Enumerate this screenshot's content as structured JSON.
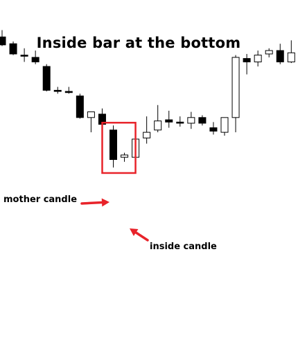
{
  "title": "Inside bar at the bottom",
  "annotations": {
    "mother": "mother candle",
    "inside": "inside candle"
  },
  "colors": {
    "bearish": "#000000",
    "bullish": "#ffffff",
    "outline": "#000000",
    "highlight": "#e8232a",
    "arrow": "#e8232a"
  },
  "chart_data": {
    "type": "candlestick",
    "title": "Inside bar at the bottom",
    "xlabel": "",
    "ylabel": "",
    "grid": false,
    "axes_visible": false,
    "ylim": [
      0,
      100
    ],
    "candles": [
      {
        "open": 88.0,
        "high": 91.0,
        "low": 84.0,
        "close": 84.5
      },
      {
        "open": 85.0,
        "high": 86.0,
        "low": 80.0,
        "close": 80.5
      },
      {
        "open": 80.0,
        "high": 83.0,
        "low": 77.0,
        "close": 79.5
      },
      {
        "open": 79.0,
        "high": 82.0,
        "low": 76.0,
        "close": 77.0
      },
      {
        "open": 75.0,
        "high": 76.0,
        "low": 64.0,
        "close": 64.5
      },
      {
        "open": 64.5,
        "high": 66.0,
        "low": 63.0,
        "close": 64.0
      },
      {
        "open": 64.0,
        "high": 66.0,
        "low": 63.0,
        "close": 63.5
      },
      {
        "open": 62.0,
        "high": 63.0,
        "low": 52.0,
        "close": 52.5
      },
      {
        "open": 52.5,
        "high": 55.0,
        "low": 46.0,
        "close": 55.0
      },
      {
        "open": 54.0,
        "high": 56.5,
        "low": 49.0,
        "close": 49.5
      },
      {
        "open": 47.0,
        "high": 49.0,
        "low": 30.5,
        "close": 34.0
      },
      {
        "open": 35.0,
        "high": 37.0,
        "low": 33.0,
        "close": 36.0
      },
      {
        "open": 35.0,
        "high": 44.5,
        "low": 32.5,
        "close": 43.0
      },
      {
        "open": 43.5,
        "high": 53.0,
        "low": 41.0,
        "close": 46.0
      },
      {
        "open": 47.0,
        "high": 58.0,
        "low": 46.0,
        "close": 51.0
      },
      {
        "open": 51.5,
        "high": 55.5,
        "low": 48.0,
        "close": 50.5
      },
      {
        "open": 50.5,
        "high": 53.0,
        "low": 48.5,
        "close": 50.0
      },
      {
        "open": 50.0,
        "high": 55.0,
        "low": 47.5,
        "close": 52.5
      },
      {
        "open": 52.5,
        "high": 53.5,
        "low": 49.0,
        "close": 50.0
      },
      {
        "open": 48.0,
        "high": 50.5,
        "low": 45.0,
        "close": 46.5
      },
      {
        "open": 46.0,
        "high": 52.0,
        "low": 44.5,
        "close": 52.5
      },
      {
        "open": 52.5,
        "high": 80.0,
        "low": 46.0,
        "close": 79.0
      },
      {
        "open": 78.5,
        "high": 80.5,
        "low": 71.5,
        "close": 77.0
      },
      {
        "open": 77.0,
        "high": 82.0,
        "low": 75.0,
        "close": 80.0
      },
      {
        "open": 80.5,
        "high": 83.0,
        "low": 79.0,
        "close": 82.0
      },
      {
        "open": 82.0,
        "high": 85.0,
        "low": 76.0,
        "close": 77.0
      },
      {
        "open": 77.0,
        "high": 86.5,
        "low": 76.5,
        "close": 81.0
      }
    ],
    "highlighted": [
      10,
      11
    ]
  }
}
